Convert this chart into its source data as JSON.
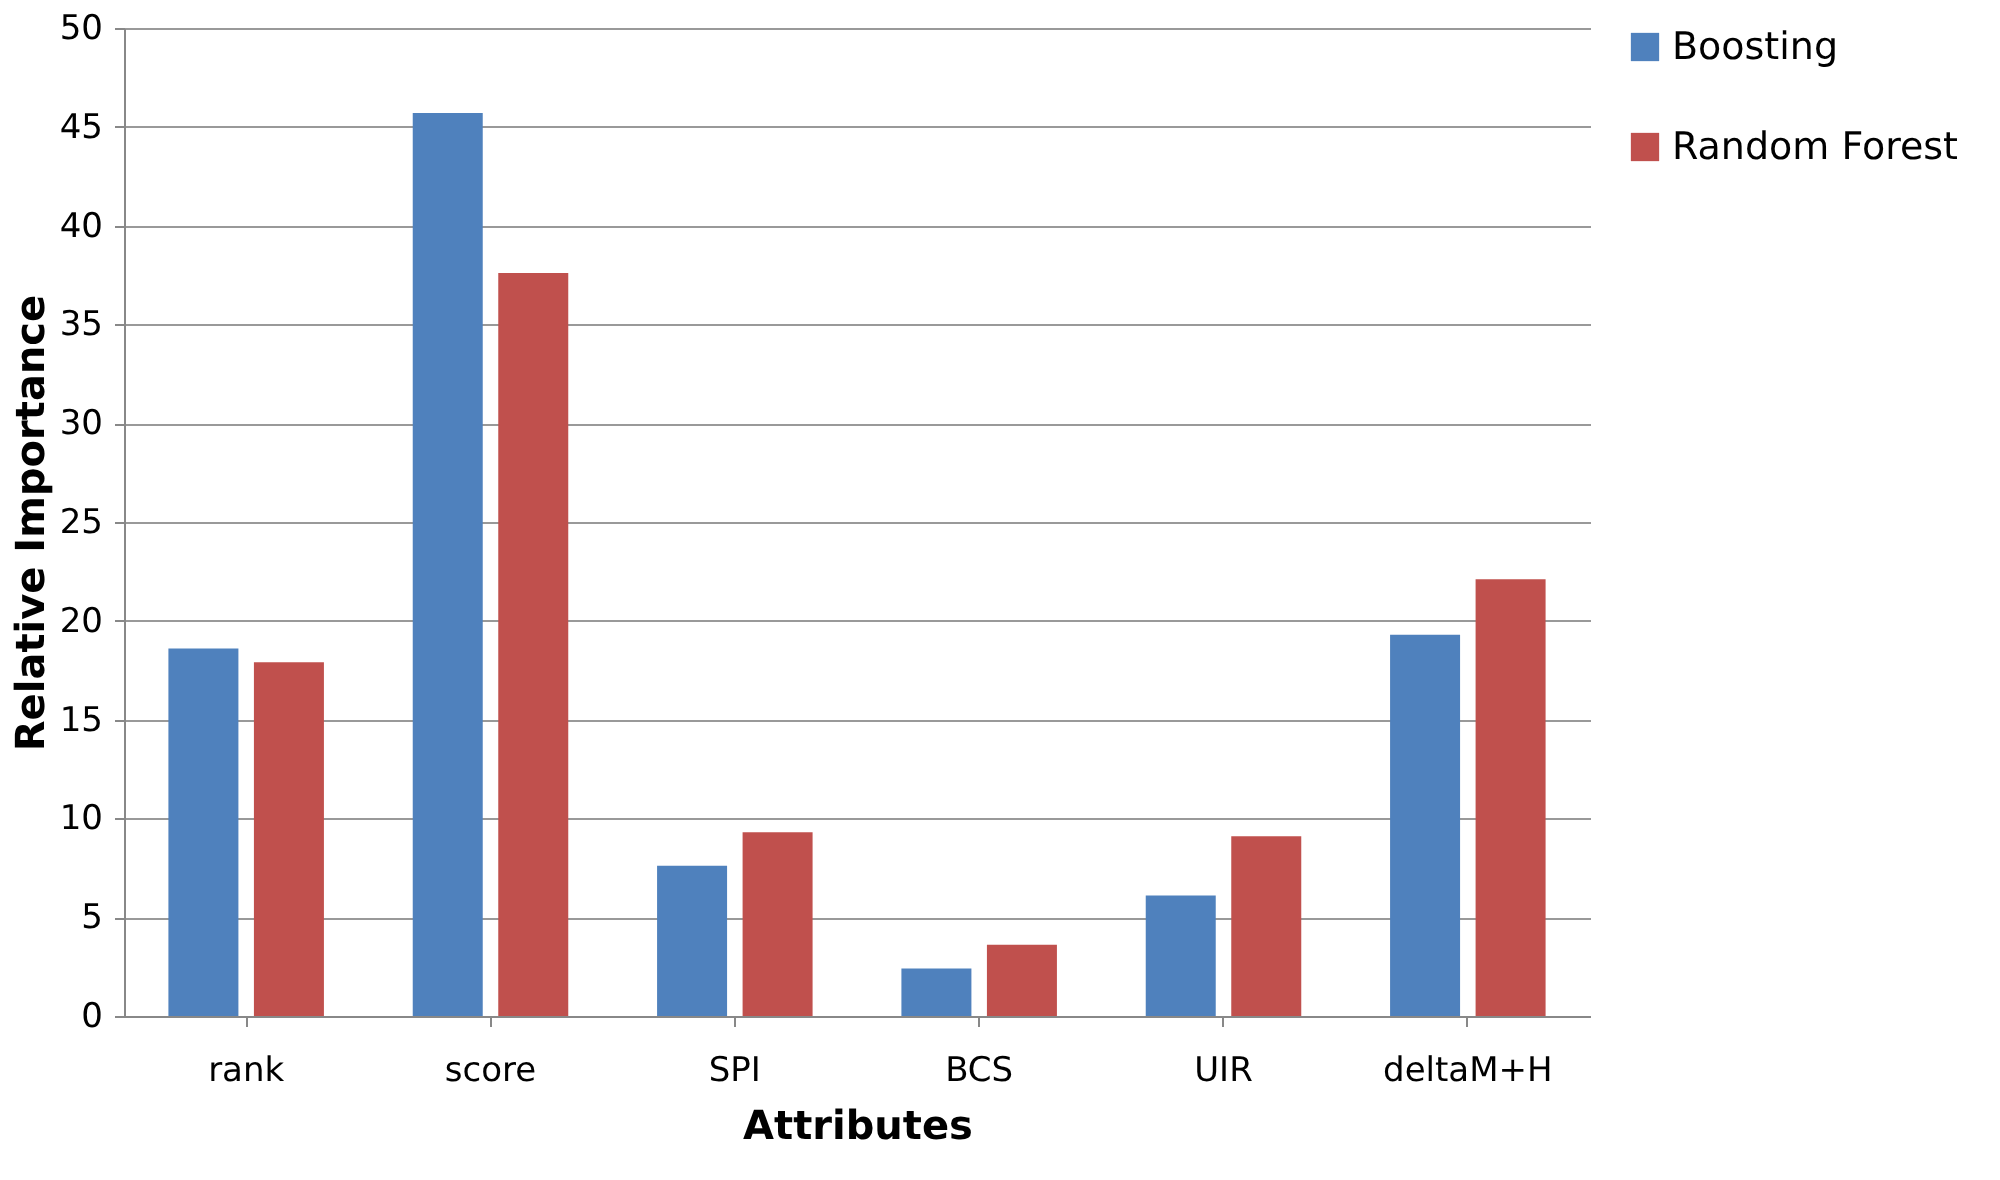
{
  "chart_data": {
    "type": "bar",
    "xlabel": "Attributes",
    "ylabel": "Relative Importance",
    "categories": [
      "rank",
      "score",
      "SPI",
      "BCS",
      "UIR",
      "deltaM+H"
    ],
    "series": [
      {
        "name": "Boosting",
        "color": "#4f81bd",
        "values": [
          18.6,
          45.7,
          7.6,
          2.4,
          6.1,
          19.3
        ]
      },
      {
        "name": "Random Forest",
        "color": "#c0504d",
        "values": [
          17.9,
          37.6,
          9.3,
          3.6,
          9.1,
          22.1
        ]
      }
    ],
    "ylim": [
      0,
      50
    ],
    "yticks": [
      0,
      5,
      10,
      15,
      20,
      25,
      30,
      35,
      40,
      45,
      50
    ],
    "grid": "y",
    "legend": "right"
  }
}
